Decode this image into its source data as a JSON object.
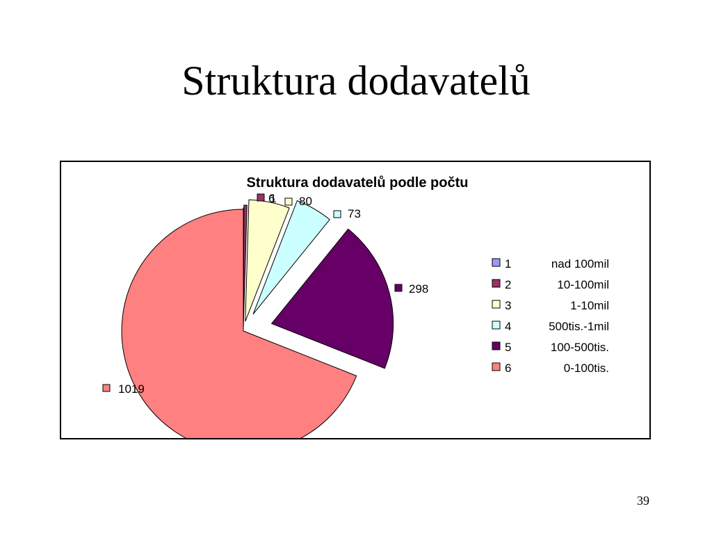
{
  "slide": {
    "title": "Struktura dodavatelů",
    "page_number": "39"
  },
  "chart_data": {
    "type": "pie",
    "title": "Struktura dodavatelů podle počtu",
    "categories": [
      "1",
      "2",
      "3",
      "4",
      "5",
      "6"
    ],
    "values": [
      1,
      6,
      80,
      73,
      298,
      1019
    ],
    "legend_descriptions": [
      "nad 100mil",
      "10-100mil",
      "1-10mil",
      "500tis.-1mil",
      "100-500tis.",
      "0-100tis."
    ],
    "data_labels": [
      "1",
      "6",
      "80",
      "73",
      "298",
      "1019"
    ],
    "colors": [
      "#9999ff",
      "#993366",
      "#ffffcc",
      "#ccffff",
      "#660066",
      "#ff8080"
    ],
    "exploded": true,
    "legend_position": "right"
  }
}
